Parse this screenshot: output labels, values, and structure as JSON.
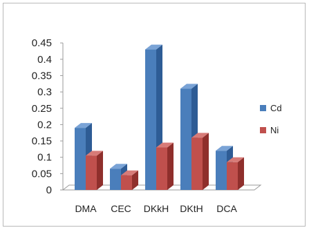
{
  "chart_data": {
    "type": "bar",
    "style": "3d-clustered-column",
    "categories": [
      "DMA",
      "CEC",
      "DKkH",
      "DKtH",
      "DCA"
    ],
    "series": [
      {
        "name": "Cd",
        "values": [
          0.19,
          0.065,
          0.43,
          0.31,
          0.12
        ]
      },
      {
        "name": "Ni",
        "values": [
          0.105,
          0.045,
          0.13,
          0.16,
          0.085
        ]
      }
    ],
    "yticks": [
      "0",
      "0.05",
      "0.1",
      "0.15",
      "0.2",
      "0.25",
      "0.3",
      "0.35",
      "0.4",
      "0.45"
    ],
    "ylim": [
      0,
      0.45
    ],
    "grid": false,
    "legend": "right",
    "colors": {
      "Cd": {
        "front": "#4a7ebb",
        "side": "#2e5c95",
        "top": "#7aa3d6"
      },
      "Ni": {
        "front": "#c0504d",
        "side": "#8f2f2c",
        "top": "#d77b78"
      },
      "axis": "#9a9a9a"
    }
  }
}
